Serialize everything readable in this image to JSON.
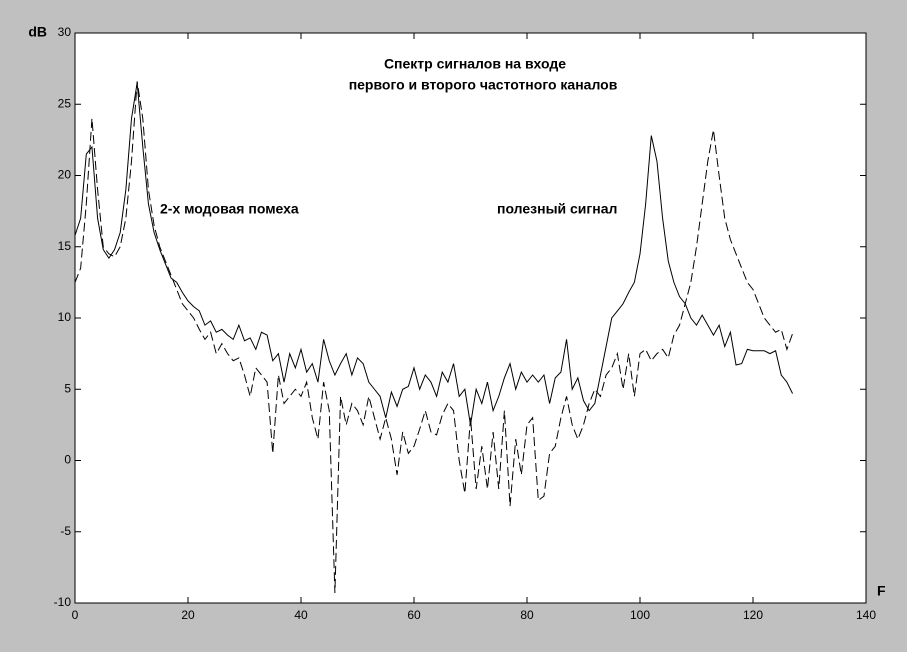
{
  "chart_data": {
    "type": "line",
    "title": [
      "Спектр сигналов на входе",
      "первого и второго частотного каналов"
    ],
    "annotations": [
      "2-х модовая помеха",
      "полезный сигнал"
    ],
    "y_label": "dB",
    "x_label": "F",
    "xlim": [
      0,
      140
    ],
    "ylim": [
      -10,
      30
    ],
    "xticks": [
      0,
      20,
      40,
      60,
      80,
      100,
      120,
      140
    ],
    "yticks": [
      -10,
      -5,
      0,
      5,
      10,
      15,
      20,
      25,
      30
    ],
    "x": [
      0,
      1,
      2,
      3,
      4,
      5,
      6,
      7,
      8,
      9,
      10,
      11,
      12,
      13,
      14,
      15,
      16,
      17,
      18,
      19,
      20,
      21,
      22,
      23,
      24,
      25,
      26,
      27,
      28,
      29,
      30,
      31,
      32,
      33,
      34,
      35,
      36,
      37,
      38,
      39,
      40,
      41,
      42,
      43,
      44,
      45,
      46,
      47,
      48,
      49,
      50,
      51,
      52,
      53,
      54,
      55,
      56,
      57,
      58,
      59,
      60,
      61,
      62,
      63,
      64,
      65,
      66,
      67,
      68,
      69,
      70,
      71,
      72,
      73,
      74,
      75,
      76,
      77,
      78,
      79,
      80,
      81,
      82,
      83,
      84,
      85,
      86,
      87,
      88,
      89,
      90,
      91,
      92,
      93,
      94,
      95,
      96,
      97,
      98,
      99,
      100,
      101,
      102,
      103,
      104,
      105,
      106,
      107,
      108,
      109,
      110,
      111,
      112,
      113,
      114,
      115,
      116,
      117,
      118,
      119,
      120,
      121,
      122,
      123,
      124,
      125,
      126,
      127
    ],
    "series": [
      {
        "color": "#000000",
        "dash": "solid",
        "values": [
          15.8,
          17,
          21.5,
          22,
          17,
          14.8,
          14.2,
          14.8,
          16,
          19,
          24,
          26.5,
          22,
          18,
          16,
          14.8,
          13.8,
          12.8,
          12.5,
          11.8,
          11.2,
          10.8,
          10.5,
          9.5,
          9.8,
          9,
          9.2,
          8.8,
          8.5,
          9.5,
          8.4,
          8.6,
          7.8,
          9,
          8.8,
          7,
          7.5,
          5.5,
          7.5,
          6.5,
          7.8,
          6.2,
          6.8,
          5.5,
          8.5,
          7,
          6,
          6.8,
          7.5,
          6,
          7.2,
          6.8,
          5.5,
          5,
          4.5,
          3,
          4.8,
          3.8,
          5,
          5.2,
          6.5,
          5,
          6,
          5.5,
          4.5,
          6.2,
          5.5,
          6.8,
          4.5,
          5,
          2.5,
          5,
          4,
          5.5,
          3.5,
          4.5,
          5.8,
          6.8,
          5,
          6.2,
          5.5,
          6,
          5.5,
          6,
          4,
          5.8,
          6.2,
          8.5,
          5,
          5.8,
          4.2,
          3.5,
          4,
          6,
          8,
          10,
          10.5,
          11,
          11.8,
          12.5,
          14.5,
          18,
          22.8,
          21,
          17,
          14,
          12.5,
          11.5,
          11,
          10,
          9.5,
          10.2,
          9.5,
          8.8,
          9.5,
          8,
          9,
          6.7,
          6.8,
          7.8,
          7.7,
          7.7,
          7.7,
          7.5,
          7.7,
          6,
          5.5,
          4.7
        ]
      },
      {
        "color": "#000000",
        "dash": "dashed",
        "values": [
          12.5,
          13.5,
          18,
          24,
          19,
          15,
          14.5,
          14.3,
          15,
          17,
          21,
          26.6,
          24,
          19,
          16.5,
          15,
          14,
          13,
          12,
          11,
          10.5,
          10,
          9.2,
          8.5,
          9,
          7.5,
          8.2,
          7.5,
          7,
          7.2,
          6,
          4.5,
          6.5,
          6,
          5.5,
          0.5,
          6,
          4,
          4.5,
          5,
          4.5,
          5.5,
          3,
          1.5,
          5.5,
          3.5,
          -9.3,
          4.5,
          2.5,
          4,
          3.5,
          2.5,
          4.5,
          3,
          1.5,
          3,
          1.5,
          -1,
          2,
          0.5,
          1,
          2.2,
          3.5,
          2,
          1.8,
          3.2,
          4,
          3.5,
          0,
          -2.3,
          3,
          -2,
          1,
          -2,
          2,
          -2,
          3.5,
          -3.2,
          1.5,
          -1,
          2.5,
          3,
          -2.8,
          -2.5,
          0.5,
          1,
          3,
          4.5,
          2.5,
          1.5,
          2.5,
          4,
          5,
          4.5,
          6,
          6.5,
          7.5,
          5,
          7.5,
          4.5,
          7.5,
          7.8,
          7,
          7.5,
          7.8,
          7.2,
          8.8,
          9.5,
          11,
          12.5,
          15,
          18,
          21,
          23.2,
          20,
          17,
          15.5,
          14.5,
          13.5,
          12.5,
          12,
          11,
          10,
          9.5,
          9,
          9.2,
          7.8,
          8.9
        ]
      }
    ]
  }
}
